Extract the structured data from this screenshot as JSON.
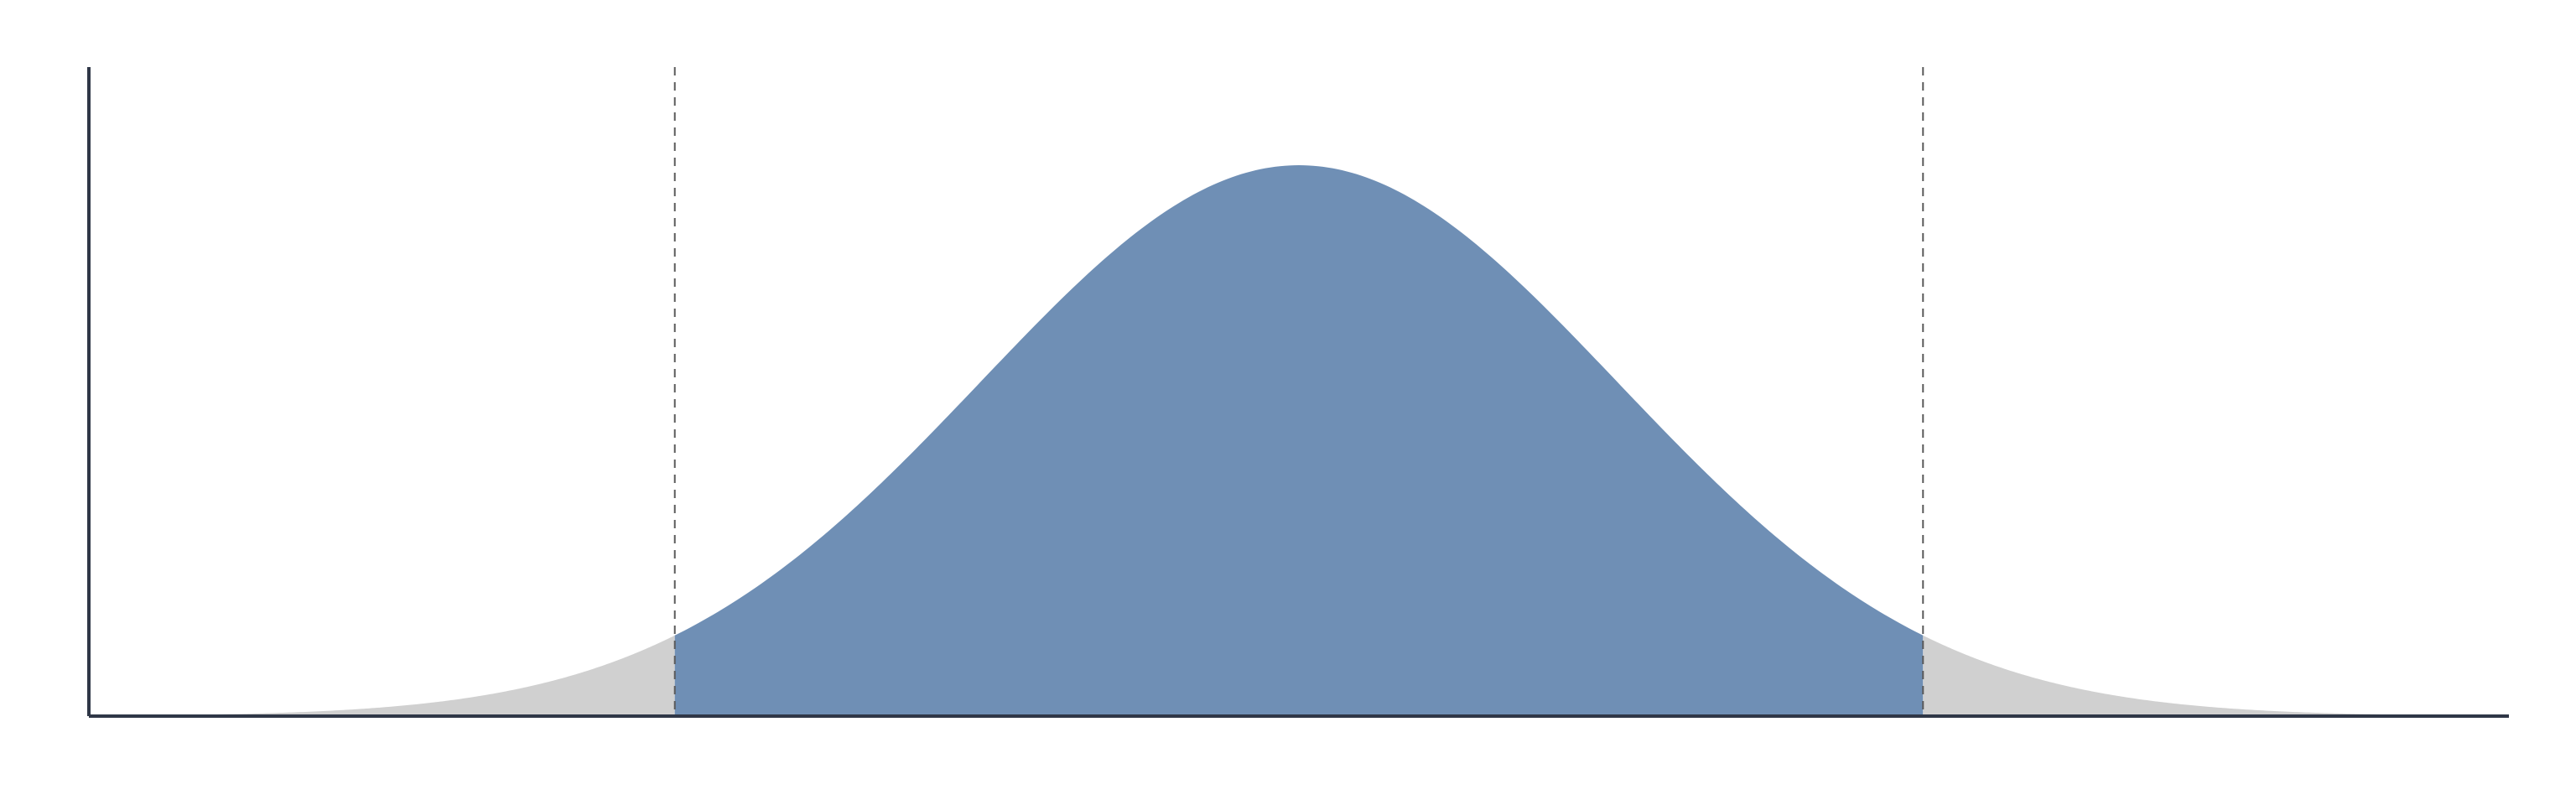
{
  "chart_data": {
    "type": "area",
    "distribution": "normal",
    "mean": 0,
    "sd": 1,
    "xlim": [
      -3.8,
      3.8
    ],
    "ylim": [
      0,
      0.47
    ],
    "x": [
      -3.8,
      -3.6,
      -3.4,
      -3.2,
      -3.0,
      -2.8,
      -2.6,
      -2.4,
      -2.2,
      -2.0,
      -1.96,
      -1.8,
      -1.6,
      -1.4,
      -1.2,
      -1.0,
      -0.8,
      -0.6,
      -0.4,
      -0.2,
      0.0,
      0.2,
      0.4,
      0.6,
      0.8,
      1.0,
      1.2,
      1.4,
      1.6,
      1.8,
      1.96,
      2.0,
      2.2,
      2.4,
      2.6,
      2.8,
      3.0,
      3.2,
      3.4,
      3.6,
      3.8
    ],
    "y": [
      0.0003,
      0.0006,
      0.0012,
      0.0024,
      0.0044,
      0.0079,
      0.0136,
      0.0224,
      0.0355,
      0.054,
      0.0584,
      0.079,
      0.1109,
      0.1497,
      0.1942,
      0.242,
      0.2897,
      0.3332,
      0.3683,
      0.391,
      0.3989,
      0.391,
      0.3683,
      0.3332,
      0.2897,
      0.242,
      0.1942,
      0.1497,
      0.1109,
      0.079,
      0.0584,
      0.054,
      0.0355,
      0.0224,
      0.0136,
      0.0079,
      0.0044,
      0.0024,
      0.0012,
      0.0006,
      0.0003
    ],
    "critical_lines": [
      -1.96,
      1.96
    ],
    "regions": [
      {
        "from": -3.8,
        "to": -1.96,
        "color": "#d0d0d0"
      },
      {
        "from": -1.96,
        "to": 1.96,
        "color": "#6f8fb5"
      },
      {
        "from": 1.96,
        "to": 3.8,
        "color": "#d0d0d0"
      }
    ],
    "colors": {
      "axis": "#2f3747",
      "critical_line": "#5a5a5a",
      "center_fill": "#6f8fb5",
      "tail_fill": "#d0d0d0"
    },
    "grid": false
  }
}
